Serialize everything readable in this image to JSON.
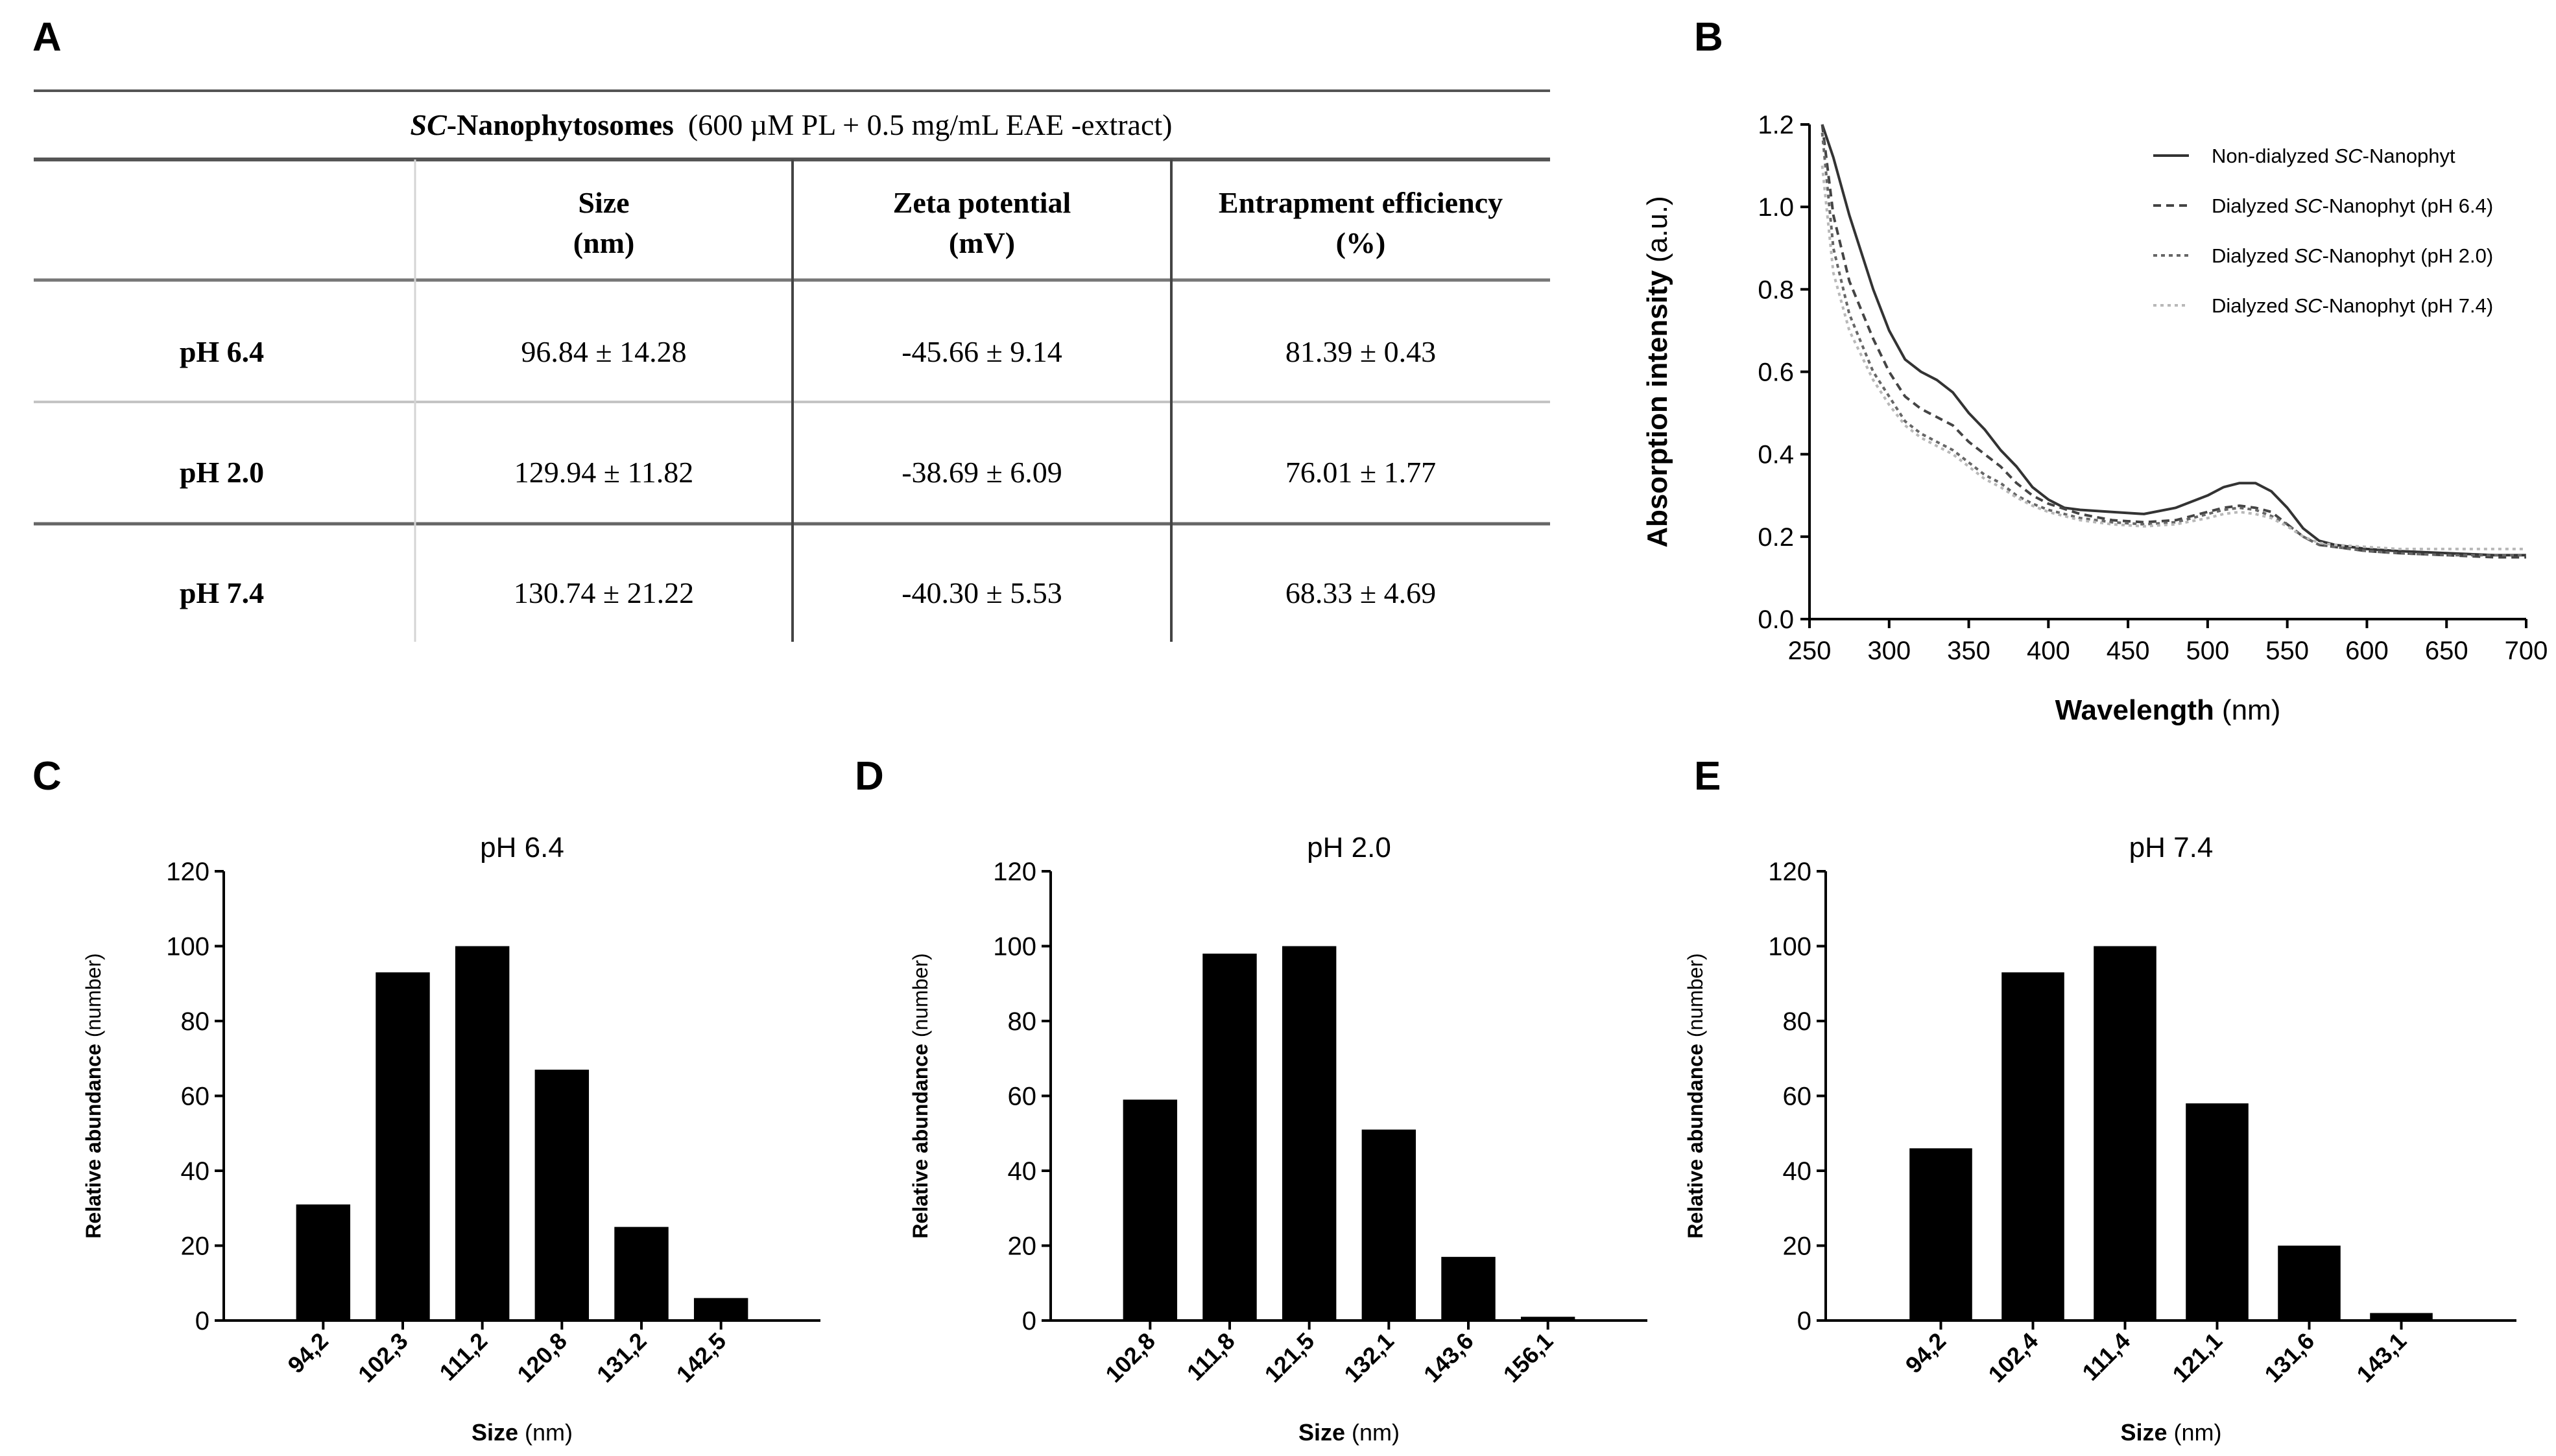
{
  "panel_labels": [
    "A",
    "B",
    "C",
    "D",
    "E"
  ],
  "table": {
    "title_italic": "SC",
    "title_bold": "-Nanophytosomes",
    "title_rest": "(600 µM PL + 0.5 mg/mL EAE -extract)",
    "columns": [
      {
        "line1": "Size",
        "line2": "(nm)"
      },
      {
        "line1": "Zeta potential",
        "line2": "(mV)"
      },
      {
        "line1": "Entrapment efficiency",
        "line2": "(%)"
      }
    ],
    "rows": [
      {
        "label": "pH 6.4",
        "values": [
          "96.84 ± 14.28",
          "-45.66 ± 9.14",
          "81.39 ± 0.43"
        ]
      },
      {
        "label": "pH 2.0",
        "values": [
          "129.94 ± 11.82",
          "-38.69 ± 6.09",
          "76.01 ± 1.77"
        ]
      },
      {
        "label": "pH 7.4",
        "values": [
          "130.74 ± 21.22",
          "-40.30 ± 5.53",
          "68.33 ± 4.69"
        ]
      }
    ]
  },
  "chart_data": [
    {
      "panel": "B",
      "type": "line",
      "title": "",
      "xlabel_bold": "Wavelength",
      "xlabel_unit": "(nm)",
      "ylabel_bold": "Absorption intensity",
      "ylabel_unit": "(a.u.)",
      "xlim": [
        250,
        700
      ],
      "ylim": [
        0.0,
        1.2
      ],
      "xticks": [
        "250",
        "300",
        "350",
        "400",
        "450",
        "500",
        "550",
        "600",
        "650",
        "700"
      ],
      "yticks": [
        "0.0",
        "0.2",
        "0.4",
        "0.6",
        "0.8",
        "1.0",
        "1.2"
      ],
      "legend_position": "top-right",
      "series": [
        {
          "name_pre": "Non-dialyzed ",
          "name_italic": "SC",
          "name_post": "-Nanophyt",
          "style": "solid",
          "color": "#333333",
          "x": [
            258,
            265,
            275,
            290,
            300,
            310,
            320,
            330,
            340,
            350,
            360,
            370,
            380,
            390,
            400,
            410,
            420,
            440,
            460,
            480,
            500,
            510,
            520,
            530,
            540,
            550,
            560,
            570,
            580,
            600,
            620,
            650,
            680,
            700
          ],
          "y": [
            1.22,
            1.12,
            0.98,
            0.8,
            0.7,
            0.63,
            0.6,
            0.58,
            0.55,
            0.5,
            0.46,
            0.41,
            0.37,
            0.32,
            0.29,
            0.27,
            0.265,
            0.26,
            0.255,
            0.27,
            0.3,
            0.32,
            0.33,
            0.33,
            0.31,
            0.27,
            0.22,
            0.19,
            0.18,
            0.17,
            0.165,
            0.16,
            0.155,
            0.155
          ]
        },
        {
          "name_pre": "Dialyzed ",
          "name_italic": "SC",
          "name_post": "-Nanophyt (pH 6.4)",
          "style": "dashed",
          "color": "#444444",
          "x": [
            258,
            265,
            275,
            290,
            300,
            310,
            320,
            330,
            340,
            350,
            360,
            370,
            380,
            390,
            400,
            420,
            440,
            460,
            480,
            500,
            510,
            520,
            530,
            540,
            550,
            560,
            570,
            580,
            600,
            620,
            650,
            680,
            700
          ],
          "y": [
            1.2,
            0.98,
            0.82,
            0.68,
            0.6,
            0.54,
            0.51,
            0.49,
            0.47,
            0.43,
            0.4,
            0.37,
            0.33,
            0.3,
            0.28,
            0.255,
            0.24,
            0.235,
            0.24,
            0.26,
            0.27,
            0.275,
            0.27,
            0.26,
            0.23,
            0.2,
            0.18,
            0.175,
            0.165,
            0.16,
            0.155,
            0.15,
            0.15
          ]
        },
        {
          "name_pre": "Dialyzed ",
          "name_italic": "SC",
          "name_post": "-Nanophyt (pH 2.0)",
          "style": "dotted",
          "color": "#666666",
          "x": [
            258,
            265,
            275,
            290,
            300,
            310,
            320,
            330,
            340,
            350,
            360,
            370,
            380,
            390,
            400,
            420,
            440,
            460,
            480,
            500,
            510,
            520,
            530,
            540,
            550,
            560,
            570,
            580,
            600,
            620,
            650,
            680,
            700
          ],
          "y": [
            1.18,
            0.9,
            0.74,
            0.6,
            0.54,
            0.48,
            0.45,
            0.43,
            0.41,
            0.38,
            0.35,
            0.33,
            0.3,
            0.28,
            0.265,
            0.245,
            0.235,
            0.23,
            0.235,
            0.255,
            0.265,
            0.27,
            0.265,
            0.25,
            0.23,
            0.2,
            0.18,
            0.175,
            0.165,
            0.16,
            0.155,
            0.155,
            0.155
          ]
        },
        {
          "name_pre": "Dialyzed ",
          "name_italic": "SC",
          "name_post": "-Nanophyt (pH 7.4)",
          "style": "dotted-light",
          "color": "#b8b8b8",
          "x": [
            258,
            265,
            275,
            290,
            300,
            310,
            320,
            330,
            340,
            350,
            360,
            370,
            380,
            390,
            400,
            420,
            440,
            460,
            480,
            500,
            510,
            520,
            530,
            540,
            550,
            560,
            570,
            580,
            600,
            620,
            650,
            680,
            700
          ],
          "y": [
            1.1,
            0.84,
            0.7,
            0.58,
            0.52,
            0.47,
            0.44,
            0.42,
            0.4,
            0.37,
            0.34,
            0.32,
            0.295,
            0.275,
            0.26,
            0.24,
            0.23,
            0.225,
            0.23,
            0.245,
            0.255,
            0.26,
            0.255,
            0.245,
            0.225,
            0.2,
            0.185,
            0.18,
            0.175,
            0.17,
            0.17,
            0.17,
            0.17
          ]
        }
      ]
    },
    {
      "panel": "C",
      "type": "bar",
      "title": "pH 6.4",
      "xlabel_bold": "Size",
      "xlabel_unit": "(nm)",
      "ylabel_bold": "Relative abundance",
      "ylabel_unit": "(number)",
      "ylim": [
        0,
        120
      ],
      "yticks": [
        "0",
        "20",
        "40",
        "60",
        "80",
        "100",
        "120"
      ],
      "categories": [
        "94,2",
        "102,3",
        "111,2",
        "120,8",
        "131,2",
        "142,5"
      ],
      "values": [
        31,
        93,
        100,
        67,
        25,
        6
      ]
    },
    {
      "panel": "D",
      "type": "bar",
      "title": "pH 2.0",
      "xlabel_bold": "Size",
      "xlabel_unit": "(nm)",
      "ylabel_bold": "Relative abundance",
      "ylabel_unit": "(number)",
      "ylim": [
        0,
        120
      ],
      "yticks": [
        "0",
        "20",
        "40",
        "60",
        "80",
        "100",
        "120"
      ],
      "categories": [
        "102,8",
        "111,8",
        "121,5",
        "132,1",
        "143,6",
        "156,1"
      ],
      "values": [
        59,
        98,
        100,
        51,
        17,
        1
      ]
    },
    {
      "panel": "E",
      "type": "bar",
      "title": "pH 7.4",
      "xlabel_bold": "Size",
      "xlabel_unit": "(nm)",
      "ylabel_bold": "Relative abundance",
      "ylabel_unit": "(number)",
      "ylim": [
        0,
        120
      ],
      "yticks": [
        "0",
        "20",
        "40",
        "60",
        "80",
        "100",
        "120"
      ],
      "categories": [
        "94,2",
        "102,4",
        "111,4",
        "121,1",
        "131,6",
        "143,1"
      ],
      "values": [
        46,
        93,
        100,
        58,
        20,
        2
      ]
    }
  ]
}
